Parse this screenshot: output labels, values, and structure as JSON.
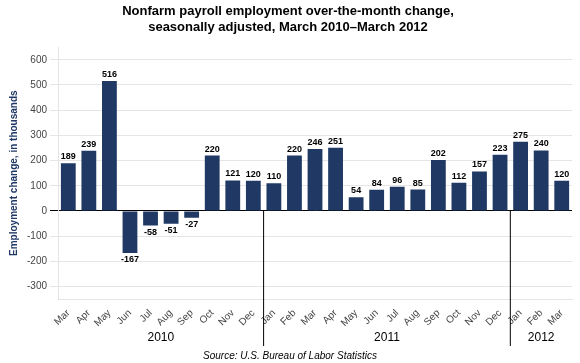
{
  "chart_data": {
    "type": "bar",
    "title": "Nonfarm payroll employment over-the-month change,\nseasonally adjusted, March 2010–March 2012",
    "ylabel": "Employment change, in thousands",
    "source": "Source: U.S. Bureau of Labor Statistics",
    "categories": [
      "Mar",
      "Apr",
      "May",
      "Jun",
      "Jul",
      "Aug",
      "Sep",
      "Oct",
      "Nov",
      "Dec",
      "Jan",
      "Feb",
      "Mar",
      "Apr",
      "May",
      "Jun",
      "Jul",
      "Aug",
      "Sep",
      "Oct",
      "Nov",
      "Dec",
      "Jan",
      "Feb",
      "Mar"
    ],
    "values": [
      189,
      239,
      516,
      -167,
      -58,
      -51,
      -27,
      220,
      121,
      120,
      110,
      220,
      246,
      251,
      54,
      84,
      96,
      85,
      202,
      112,
      157,
      223,
      275,
      240,
      120
    ],
    "year_groups": [
      {
        "label": "2010",
        "start": 0,
        "end": 9
      },
      {
        "label": "2011",
        "start": 10,
        "end": 21
      },
      {
        "label": "2012",
        "start": 22,
        "end": 24
      }
    ],
    "color": "#1F3864",
    "ylim": [
      -350,
      650
    ],
    "yticks": [
      -300,
      -200,
      -100,
      0,
      100,
      200,
      300,
      400,
      500,
      600
    ],
    "grid": true,
    "data_labels": true
  }
}
